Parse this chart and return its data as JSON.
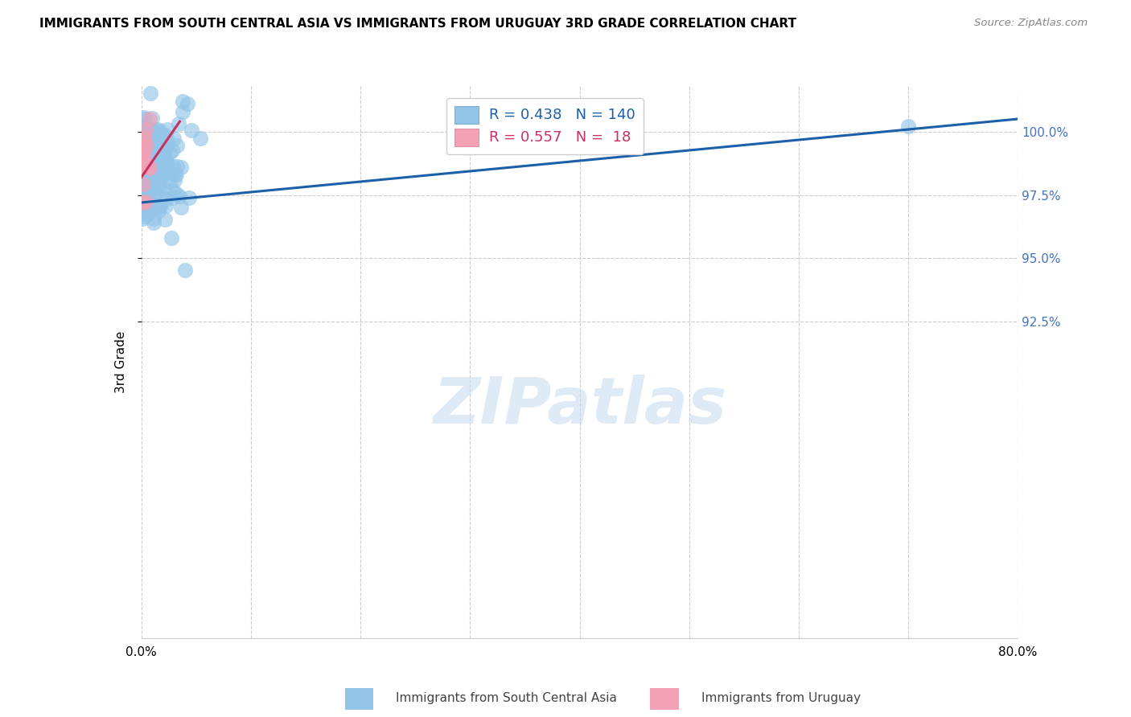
{
  "title": "IMMIGRANTS FROM SOUTH CENTRAL ASIA VS IMMIGRANTS FROM URUGUAY 3RD GRADE CORRELATION CHART",
  "source": "Source: ZipAtlas.com",
  "ylabel": "3rd Grade",
  "r_blue": 0.438,
  "n_blue": 140,
  "r_pink": 0.557,
  "n_pink": 18,
  "xlim": [
    0.0,
    80.0
  ],
  "ylim": [
    80.0,
    101.8
  ],
  "yticks": [
    92.5,
    95.0,
    97.5,
    100.0
  ],
  "ytick_labels": [
    "92.5%",
    "95.0%",
    "97.5%",
    "100.0%"
  ],
  "xtick_positions": [
    0.0,
    10.0,
    20.0,
    30.0,
    40.0,
    50.0,
    60.0,
    70.0,
    80.0
  ],
  "xtick_labels": [
    "0.0%",
    "",
    "",
    "",
    "",
    "",
    "",
    "",
    "80.0%"
  ],
  "blue_color": "#92C5E8",
  "pink_color": "#F4A0B5",
  "blue_line_color": "#1A5FA8",
  "pink_line_color": "#C83060",
  "grid_color": "#CCCCCC",
  "watermark_color": "#C8DCF0",
  "watermark_text": "ZIPatlas",
  "legend_blue_label": "Immigrants from South Central Asia",
  "legend_pink_label": "Immigrants from Uruguay",
  "legend_r_blue": "R = 0.438",
  "legend_n_blue": "N = 140",
  "legend_r_pink": "R = 0.557",
  "legend_n_pink": "N =  18",
  "blue_trend_x0": 0.0,
  "blue_trend_y0": 97.2,
  "blue_trend_x1": 80.0,
  "blue_trend_y1": 100.5,
  "pink_trend_x0": 0.0,
  "pink_trend_y0": 98.2,
  "pink_trend_x1": 3.5,
  "pink_trend_y1": 100.4
}
